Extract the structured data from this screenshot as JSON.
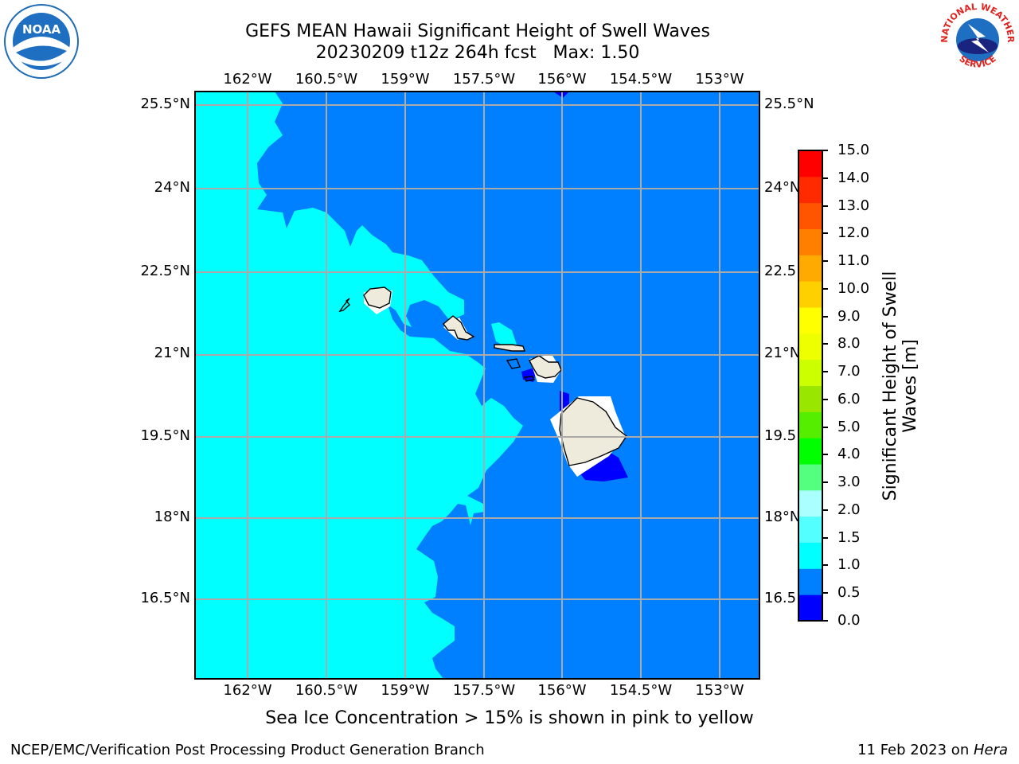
{
  "title_line1": "GEFS MEAN Hawaii Significant Height of Swell Waves",
  "title_line2": "20230209 t12z 264h fcst   Max: 1.50",
  "logos": {
    "left": "NOAA",
    "right_top": "NATIONAL WEATHER",
    "right_bottom": "SERVICE"
  },
  "x_ticks": [
    "162°W",
    "160.5°W",
    "159°W",
    "157.5°W",
    "156°W",
    "154.5°W",
    "153°W"
  ],
  "y_ticks": [
    "25.5°N",
    "24°N",
    "22.5°N",
    "21°N",
    "19.5°N",
    "18°N",
    "16.5°N"
  ],
  "colorbar": {
    "label": "Significant Height of Swell Waves [m]",
    "label_line1": "Significant Height of Swell",
    "label_line2": "Waves [m]",
    "levels": [
      "0.0",
      "0.5",
      "1.0",
      "1.5",
      "2.0",
      "3.0",
      "4.0",
      "5.0",
      "6.0",
      "7.0",
      "8.0",
      "9.0",
      "10.0",
      "11.0",
      "12.0",
      "13.0",
      "14.0",
      "15.0"
    ],
    "colors": [
      "#0000ff",
      "#0080ff",
      "#00ffff",
      "#54ffff",
      "#aaffff",
      "#54ff80",
      "#00ff00",
      "#55ee00",
      "#99e600",
      "#ccff00",
      "#eeff00",
      "#ffff00",
      "#ffd000",
      "#ffaa00",
      "#ff8000",
      "#ff5500",
      "#ff2a00",
      "#ff0000"
    ]
  },
  "map_colors": {
    "low": "#0000ff",
    "mid": "#0080ff",
    "high": "#00ffff",
    "land": "#efebdc"
  },
  "ice_note": "Sea Ice Concentration > 15% is shown in pink to yellow",
  "footer_left": "NCEP/EMC/Verification Post Processing Product Generation Branch",
  "footer_right_prefix": "11 Feb 2023 on ",
  "footer_right_machine": "Hera"
}
